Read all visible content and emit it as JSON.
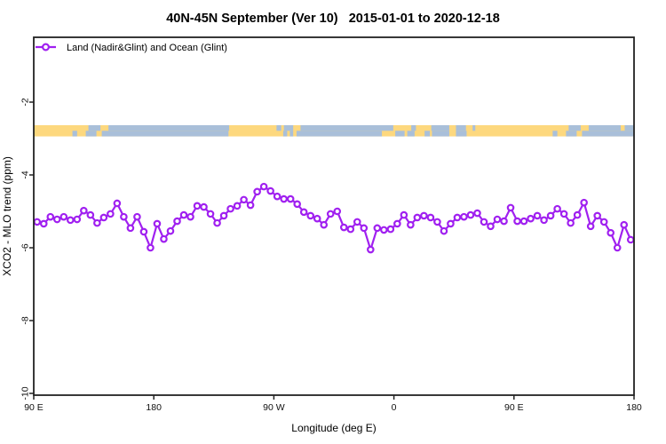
{
  "title": "40N-45N September (Ver 10)   2015-01-01 to 2020-12-18",
  "legend": {
    "label": "Land (Nadir&Glint) and Ocean (Glint)"
  },
  "axes": {
    "x": {
      "label": "Longitude (deg E)"
    },
    "y": {
      "label": "XCO2 - MLO trend (ppm)"
    }
  },
  "colors": {
    "line": "#A020F0",
    "marker_fill": "#FFFFFF",
    "land": "#FDD87E",
    "ocean": "#A9BFD9",
    "axis": "#222222",
    "background": "#FFFFFF"
  },
  "map_band": {
    "description": "land/ocean mask strip for latitude band 40N-45N, drawn near y = -2.8",
    "rows": [
      {
        "name": "north-half",
        "ocean": [
          [
            131,
            140
          ],
          [
            146,
            236.5
          ],
          [
            272,
            275.5
          ],
          [
            277.5,
            284.5
          ],
          [
            290,
            359.5
          ],
          [
            373,
            376.5
          ],
          [
            388,
            401.5
          ],
          [
            406.5,
            414
          ],
          [
            419,
            421
          ],
          [
            491,
            500
          ],
          [
            506,
            540
          ]
        ],
        "islands": [
          [
            530,
            533
          ]
        ]
      },
      {
        "name": "south-half",
        "ocean": [
          [
            119,
            122.5
          ],
          [
            129,
            137
          ],
          [
            141,
            236
          ],
          [
            277,
            280
          ],
          [
            282,
            284.5
          ],
          [
            287,
            351
          ],
          [
            361,
            368
          ],
          [
            370,
            375.5
          ],
          [
            383,
            387
          ],
          [
            388.5,
            401.5
          ],
          [
            406.5,
            414.5
          ],
          [
            479,
            482.5
          ],
          [
            489,
            497
          ],
          [
            501,
            540
          ]
        ],
        "islands": []
      }
    ]
  },
  "chart_data": {
    "type": "line",
    "title": "40N-45N September (Ver 10)   2015-01-01 to 2020-12-18",
    "xlabel": "Longitude (deg E)",
    "ylabel": "XCO2 - MLO trend (ppm)",
    "xlim": [
      90,
      540
    ],
    "ylim": [
      -10,
      0
    ],
    "grid": false,
    "legend_position": "top-left",
    "x_ticks": [
      90,
      180,
      270,
      360,
      450,
      540
    ],
    "x_tick_labels": [
      "90 E",
      "180",
      "90 W",
      "0",
      "90 E",
      "180"
    ],
    "y_ticks": [
      -2,
      -4,
      -6,
      -8,
      -10
    ],
    "y_tick_labels": [
      "-2",
      "-4",
      "-6",
      "-8",
      "-10"
    ],
    "series": [
      {
        "name": "Land (Nadir&Glint) and Ocean (Glint)",
        "color": "#A020F0",
        "marker": "open-circle",
        "x": [
          92.5,
          97.5,
          102.5,
          107.5,
          112.5,
          117.5,
          122.5,
          127.5,
          132.5,
          137.5,
          142.5,
          147.5,
          152.5,
          157.5,
          162.5,
          167.5,
          172.5,
          177.5,
          182.5,
          187.5,
          192.5,
          197.5,
          202.5,
          207.5,
          212.5,
          217.5,
          222.5,
          227.5,
          232.5,
          237.5,
          242.5,
          247.5,
          252.5,
          257.5,
          262.5,
          267.5,
          272.5,
          277.5,
          282.5,
          287.5,
          292.5,
          297.5,
          302.5,
          307.5,
          312.5,
          317.5,
          322.5,
          327.5,
          332.5,
          337.5,
          342.5,
          347.5,
          352.5,
          357.5,
          362.5,
          367.5,
          372.5,
          377.5,
          382.5,
          387.5,
          392.5,
          397.5,
          402.5,
          407.5,
          412.5,
          417.5,
          422.5,
          427.5,
          432.5,
          437.5,
          442.5,
          447.5,
          452.5,
          457.5,
          462.5,
          467.5,
          472.5,
          477.5,
          482.5,
          487.5,
          492.5,
          497.5,
          502.5,
          507.5,
          512.5,
          517.5,
          522.5,
          527.5,
          532.5,
          537.5
        ],
        "y": [
          -5.29,
          -5.34,
          -5.15,
          -5.22,
          -5.15,
          -5.24,
          -5.22,
          -4.98,
          -5.1,
          -5.32,
          -5.17,
          -5.07,
          -4.78,
          -5.15,
          -5.46,
          -5.15,
          -5.56,
          -6.0,
          -5.34,
          -5.76,
          -5.54,
          -5.27,
          -5.1,
          -5.15,
          -4.85,
          -4.88,
          -5.07,
          -5.32,
          -5.12,
          -4.93,
          -4.85,
          -4.68,
          -4.83,
          -4.46,
          -4.32,
          -4.44,
          -4.59,
          -4.66,
          -4.66,
          -4.8,
          -5.02,
          -5.12,
          -5.2,
          -5.37,
          -5.07,
          -5.0,
          -5.44,
          -5.49,
          -5.29,
          -5.46,
          -6.05,
          -5.46,
          -5.51,
          -5.49,
          -5.34,
          -5.1,
          -5.37,
          -5.17,
          -5.12,
          -5.17,
          -5.29,
          -5.54,
          -5.34,
          -5.17,
          -5.15,
          -5.1,
          -5.05,
          -5.29,
          -5.41,
          -5.22,
          -5.27,
          -4.9,
          -5.27,
          -5.27,
          -5.2,
          -5.12,
          -5.24,
          -5.12,
          -4.93,
          -5.07,
          -5.32,
          -5.1,
          -4.76,
          -5.41,
          -5.12,
          -5.29,
          -5.59,
          -6.0,
          -5.37,
          -5.78
        ]
      }
    ]
  }
}
